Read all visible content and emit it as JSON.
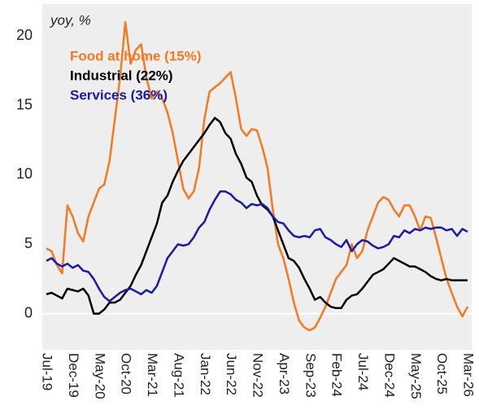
{
  "chart_data": {
    "type": "line",
    "unit_label": "yoy, %",
    "categories": [
      "Jul-19",
      null,
      null,
      null,
      null,
      "Dec-19",
      null,
      null,
      null,
      null,
      "May-20",
      null,
      null,
      null,
      null,
      "Oct-20",
      null,
      null,
      null,
      null,
      "Mar-21",
      null,
      null,
      null,
      null,
      "Aug-21",
      null,
      null,
      null,
      null,
      "Jan-22",
      null,
      null,
      null,
      null,
      "Jun-22",
      null,
      null,
      null,
      null,
      "Nov-22",
      null,
      null,
      null,
      null,
      "Apr-23",
      null,
      null,
      null,
      null,
      "Sep-23",
      null,
      null,
      null,
      null,
      "Feb-24",
      null,
      null,
      null,
      null,
      "Jul-24",
      null,
      null,
      null,
      null,
      "Dec-24",
      null,
      null,
      null,
      null,
      "May-25",
      null,
      null,
      null,
      null,
      "Oct-25",
      null,
      null,
      null,
      null,
      "Mar-26"
    ],
    "series": [
      {
        "name": "Food at home (15%)",
        "color": "#f47920",
        "values": [
          4.7,
          4.5,
          3.5,
          2.9,
          7.8,
          7,
          5.8,
          5.2,
          7,
          8,
          9,
          9.3,
          11,
          14,
          17,
          21,
          18,
          19,
          19.4,
          17,
          15.5,
          16,
          15.5,
          14.5,
          13,
          11,
          9,
          8.3,
          8.8,
          10.5,
          14,
          16,
          16.3,
          16.6,
          17,
          17.4,
          15.5,
          13.3,
          12.8,
          13.3,
          13.2,
          12,
          10.5,
          7.5,
          5,
          4,
          2.5,
          0.8,
          -0.5,
          -1,
          -1.2,
          -1,
          -0.3,
          0.5,
          1.5,
          2.5,
          3,
          3.5,
          5,
          4,
          4.5,
          6,
          7,
          8,
          8.4,
          8.2,
          7.5,
          7,
          7.8,
          7.8,
          7,
          6,
          7,
          6.9,
          5.5,
          4,
          2.5,
          1.5,
          0.5,
          -0.2,
          0.5
        ]
      },
      {
        "name": "Industrial (22%)",
        "color": "#000000",
        "values": [
          1.4,
          1.5,
          1.3,
          1.1,
          1.8,
          1.7,
          1.6,
          1.8,
          1.3,
          0,
          0,
          0.3,
          0.8,
          0.8,
          1,
          1.5,
          2,
          2.8,
          3.5,
          4.5,
          5.5,
          6.5,
          8,
          8.5,
          9.5,
          10.3,
          11,
          11.5,
          12,
          12.5,
          13,
          13.6,
          14.1,
          13.8,
          13,
          12.6,
          11.5,
          10.8,
          9.8,
          9.5,
          8.5,
          7.8,
          7.5,
          7,
          6,
          5,
          4,
          3.8,
          3.3,
          2.5,
          1.8,
          1,
          1.2,
          0.8,
          0.5,
          0.4,
          0.4,
          1,
          1.3,
          1.4,
          1.8,
          2.3,
          2.8,
          3,
          3.2,
          3.6,
          4,
          3.8,
          3.6,
          3.4,
          3.4,
          3.2,
          3,
          2.7,
          2.5,
          2.4,
          2.5,
          2.4,
          2.4,
          2.4,
          2.4
        ]
      },
      {
        "name": "Services (36%)",
        "color": "#1a1aa6",
        "values": [
          3.8,
          4,
          3.6,
          3.4,
          3.6,
          3.3,
          3.5,
          3.1,
          3,
          2.5,
          1.8,
          1.2,
          0.9,
          1.2,
          1.5,
          1.7,
          1.8,
          1.6,
          1.4,
          1.7,
          1.5,
          2,
          3,
          4,
          4.5,
          5,
          4.9,
          5,
          5.5,
          6.2,
          6.6,
          7.5,
          8.2,
          8.8,
          8.8,
          8.6,
          8.2,
          8,
          7.6,
          7.9,
          7.8,
          7.9,
          7.6,
          7,
          6.6,
          6.5,
          6,
          5.6,
          5.5,
          5.6,
          5.5,
          6,
          6.1,
          5.5,
          5.3,
          5,
          4.8,
          5.3,
          4.5,
          5,
          5.3,
          5.2,
          4.9,
          4.7,
          4.8,
          5,
          5.6,
          5.5,
          6,
          5.8,
          6.1,
          6,
          6.2,
          6.1,
          6.2,
          6.2,
          6,
          6.1,
          5.6,
          6.1,
          5.9
        ]
      }
    ],
    "ylim": [
      -2.6,
      22.3
    ],
    "yticks": [
      0,
      5,
      10,
      15,
      20
    ],
    "background": "#eeeeee",
    "zero_line_color": "#ffffff"
  }
}
